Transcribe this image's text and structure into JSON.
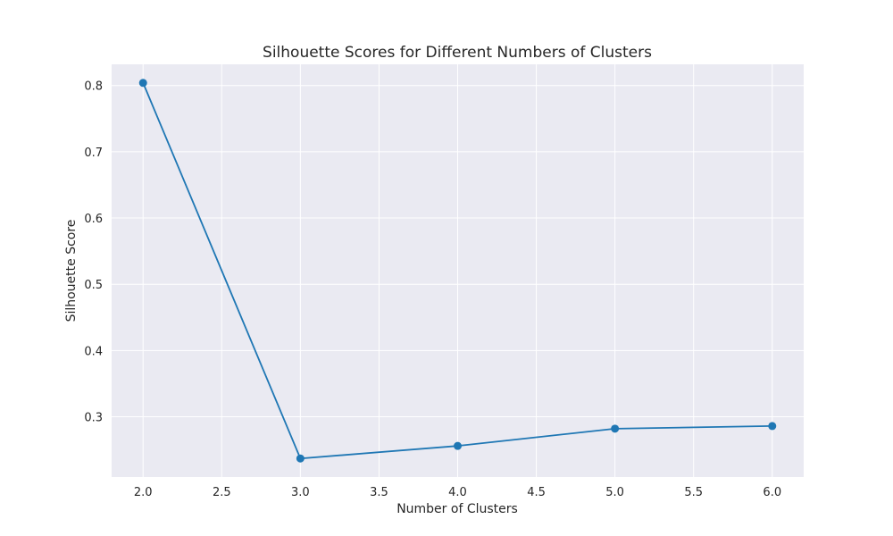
{
  "chart_data": {
    "type": "line",
    "title": "Silhouette Scores for Different Numbers of Clusters",
    "xlabel": "Number of Clusters",
    "ylabel": "Silhouette Score",
    "x": [
      2,
      3,
      4,
      5,
      6
    ],
    "series": [
      {
        "values": [
          0.804,
          0.237,
          0.256,
          0.282,
          0.286
        ],
        "color": "#1f77b4",
        "marker": "circle"
      }
    ],
    "xticks": [
      "2.0",
      "2.5",
      "3.0",
      "3.5",
      "4.0",
      "4.5",
      "5.0",
      "5.5",
      "6.0"
    ],
    "yticks": [
      "0.3",
      "0.4",
      "0.5",
      "0.6",
      "0.7",
      "0.8"
    ],
    "xlim": [
      1.8,
      6.2
    ],
    "ylim": [
      0.209,
      0.832
    ],
    "grid": true,
    "background_color": "#eaeaf2",
    "grid_color": "#ffffff"
  }
}
